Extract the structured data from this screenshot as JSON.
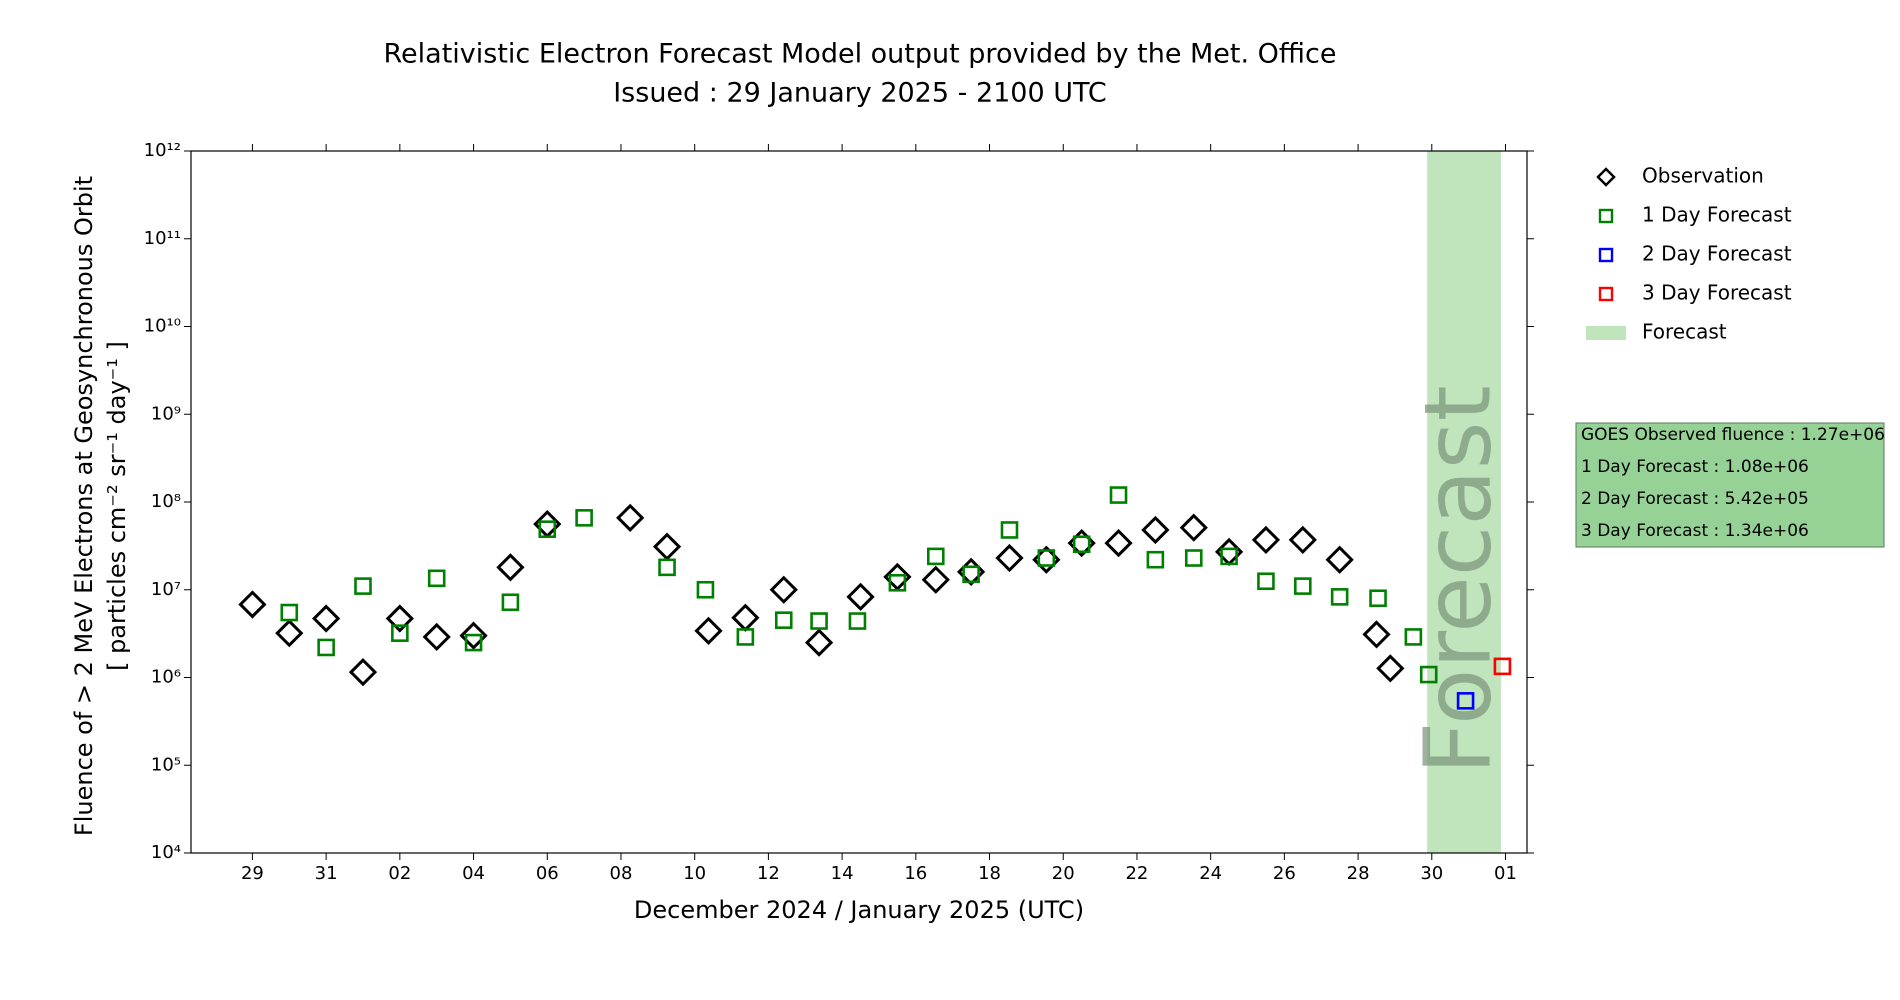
{
  "chart_data": {
    "type": "scatter",
    "title": [
      "Relativistic Electron Forecast Model output provided by the Met. Office",
      "Issued : 29 January 2025 - 2100 UTC"
    ],
    "x_label": "December 2024 / January 2025 (UTC)",
    "y_label": [
      "Fluence of > 2 MeV Electrons at Geosynchronous Orbit",
      "[ particles cm⁻² sr⁻¹ day⁻¹ ]"
    ],
    "yscale": "log",
    "ylim": [
      10000,
      1000000000000
    ],
    "yticks": [
      {
        "value": 10000,
        "label": "10⁴"
      },
      {
        "value": 100000,
        "label": "10⁵"
      },
      {
        "value": 1000000,
        "label": "10⁶"
      },
      {
        "value": 10000000,
        "label": "10⁷"
      },
      {
        "value": 100000000,
        "label": "10⁸"
      },
      {
        "value": 1000000000,
        "label": "10⁹"
      },
      {
        "value": 10000000000,
        "label": "10¹⁰"
      },
      {
        "value": 100000000000,
        "label": "10¹¹"
      },
      {
        "value": 1000000000000,
        "label": "10¹²"
      }
    ],
    "xlim": [
      "2024-12-27T08:00",
      "2025-02-01T14:00"
    ],
    "xticks": [
      {
        "value": "2024-12-29T00:00",
        "label": "29"
      },
      {
        "value": "2024-12-31T00:00",
        "label": "31"
      },
      {
        "value": "2025-01-02T00:00",
        "label": "02"
      },
      {
        "value": "2025-01-04T00:00",
        "label": "04"
      },
      {
        "value": "2025-01-06T00:00",
        "label": "06"
      },
      {
        "value": "2025-01-08T00:00",
        "label": "08"
      },
      {
        "value": "2025-01-10T00:00",
        "label": "10"
      },
      {
        "value": "2025-01-12T00:00",
        "label": "12"
      },
      {
        "value": "2025-01-14T00:00",
        "label": "14"
      },
      {
        "value": "2025-01-16T00:00",
        "label": "16"
      },
      {
        "value": "2025-01-18T00:00",
        "label": "18"
      },
      {
        "value": "2025-01-20T00:00",
        "label": "20"
      },
      {
        "value": "2025-01-22T00:00",
        "label": "22"
      },
      {
        "value": "2025-01-24T00:00",
        "label": "24"
      },
      {
        "value": "2025-01-26T00:00",
        "label": "26"
      },
      {
        "value": "2025-01-28T00:00",
        "label": "28"
      },
      {
        "value": "2025-01-30T00:00",
        "label": "30"
      },
      {
        "value": "2025-02-01T00:00",
        "label": "01"
      }
    ],
    "forecast_band": {
      "name": "Forecast",
      "label": "Forecast",
      "color": "#c0e4bc",
      "x": [
        "2025-01-29T21:00",
        "2025-01-31T21:00"
      ]
    },
    "series": [
      {
        "name": "Observation",
        "color": "#000000",
        "marker": "diamond",
        "x": [
          "2024-12-29T00:00",
          "2024-12-30T00:00",
          "2024-12-31T00:00",
          "2025-01-01T00:00",
          "2025-01-02T00:00",
          "2025-01-03T00:00",
          "2025-01-04T00:00",
          "2025-01-05T00:00",
          "2025-01-06T00:00",
          "2025-01-08T06:00",
          "2025-01-09T06:00",
          "2025-01-10T09:00",
          "2025-01-11T09:00",
          "2025-01-12T10:00",
          "2025-01-13T09:00",
          "2025-01-14T12:00",
          "2025-01-15T12:00",
          "2025-01-16T13:00",
          "2025-01-17T12:00",
          "2025-01-18T13:00",
          "2025-01-19T13:00",
          "2025-01-20T12:00",
          "2025-01-21T12:00",
          "2025-01-22T12:00",
          "2025-01-23T13:00",
          "2025-01-24T12:00",
          "2025-01-25T12:00",
          "2025-01-26T12:00",
          "2025-01-27T12:00",
          "2025-01-28T12:00",
          "2025-01-28T21:00"
        ],
        "values": [
          6800000,
          3200000,
          4700000,
          1150000,
          4700000,
          2900000,
          3000000,
          18000000,
          56000000,
          66000000,
          31000000,
          3400000,
          4800000,
          10000000,
          2500000,
          8300000,
          14000000,
          13000000,
          16000000,
          23000000,
          22000000,
          34000000,
          34000000,
          48000000,
          51000000,
          27000000,
          37000000,
          37000000,
          22000000,
          3100000,
          1270000
        ]
      },
      {
        "name": "1 Day Forecast",
        "color": "#008000",
        "marker": "square",
        "x": [
          "2024-12-30T00:00",
          "2024-12-31T00:00",
          "2025-01-01T00:00",
          "2025-01-02T00:00",
          "2025-01-03T00:00",
          "2025-01-04T00:00",
          "2025-01-05T00:00",
          "2025-01-06T00:00",
          "2025-01-07T00:00",
          "2025-01-09T06:00",
          "2025-01-10T07:00",
          "2025-01-11T09:00",
          "2025-01-12T10:00",
          "2025-01-13T09:00",
          "2025-01-14T10:00",
          "2025-01-15T12:00",
          "2025-01-16T13:00",
          "2025-01-17T12:00",
          "2025-01-18T13:00",
          "2025-01-19T13:00",
          "2025-01-20T12:00",
          "2025-01-21T12:00",
          "2025-01-22T12:00",
          "2025-01-23T13:00",
          "2025-01-24T12:00",
          "2025-01-25T12:00",
          "2025-01-26T12:00",
          "2025-01-27T12:00",
          "2025-01-28T13:00",
          "2025-01-29T12:00",
          "2025-01-29T22:00"
        ],
        "values": [
          5500000,
          2200000,
          11000000,
          3200000,
          13500000,
          2500000,
          7200000,
          49000000,
          66000000,
          18000000,
          10000000,
          2900000,
          4500000,
          4400000,
          4400000,
          12000000,
          24000000,
          15000000,
          48000000,
          23000000,
          33000000,
          120000000,
          22000000,
          23000000,
          24000000,
          12500000,
          11000000,
          8300000,
          8000000,
          2900000,
          1080000
        ]
      },
      {
        "name": "2 Day Forecast",
        "color": "#0000ff",
        "marker": "square",
        "x": [
          "2025-01-30T22:00"
        ],
        "values": [
          542000
        ]
      },
      {
        "name": "3 Day Forecast",
        "color": "#ff0000",
        "marker": "square",
        "x": [
          "2025-01-31T22:00"
        ],
        "values": [
          1340000
        ]
      }
    ],
    "info_box": {
      "color": "#96d196",
      "lines": [
        "GOES Observed fluence : 1.27e+06",
        "1 Day Forecast : 1.08e+06",
        "2 Day Forecast : 5.42e+05",
        "3 Day Forecast : 1.34e+06"
      ]
    }
  }
}
